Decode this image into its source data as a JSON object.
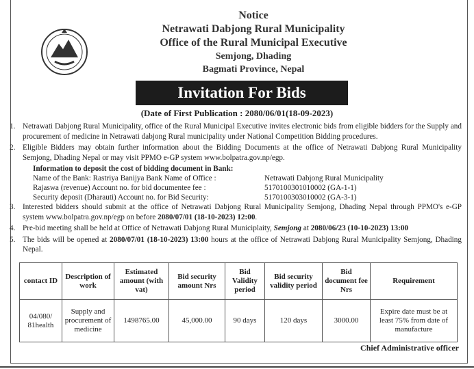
{
  "header": {
    "notice": "Notice",
    "municipality": "Netrawati Dabjong Rural Municipality",
    "office": "Office of the Rural Municipal Executive",
    "location": "Semjong, Dhading",
    "province": "Bagmati Province, Nepal"
  },
  "banner": "Invitation For Bids",
  "publication_date": "(Date of First Publication : 2080/06/01(18-09-2023)",
  "items": [
    {
      "n": "1.",
      "text": "Netrawati Dabjong Rural Municipality, office of the Rural Municipal Executive invites electronic bids from eligible bidders for the Supply and procurement of medicine in Netrawati dabjong Rural municipality under National Competition Bidding procedures."
    },
    {
      "n": "2.",
      "text": "Eligible Bidders may obtain further information about the Bidding Documents at the office of Netrawati Dabjong Rural Municipality Semjong, Dhading Nepal or may visit PPMO e-GP system ",
      "link": "www.bolpatra.gov.np/egp",
      "end": "."
    }
  ],
  "bank": {
    "heading": "Information to deposit the cost of bidding document in Bank:",
    "rows": [
      [
        "Name of the Bank: Rastriya  Banijya Bank   Name of Office :",
        "Netrawati Dabjong Rural Municipality"
      ],
      [
        "Rajaswa (revenue) Account no. for bid documentee fee :",
        "5170100301010002 (GA-1-1)"
      ],
      [
        "Security deposit (Dharauti) Account no. for Bid Security:",
        "5170100303010002 (GA-3-1)"
      ]
    ]
  },
  "items2": [
    {
      "n": "3.",
      "a": "Interested bidders should submit at the office of Netrawati Dabjong Rural Municipality Semjong, Dhading Nepal through PPMO's e-GP system www.bolpatra.gov.np/egp on  before ",
      "b": "2080/07/01 (18-10-2023) 12:00",
      "c": "."
    },
    {
      "n": "4.",
      "a": "Pre-bid meeting shall be held at Office of Netrawati Dabjong Rural Municiplaity, ",
      "i": "Semjong",
      "a2": " at ",
      "b": "2080/06/23 (10-10-2023) 13:00"
    },
    {
      "n": "5.",
      "a": "The bids will be opened at  ",
      "b": "2080/07/01 (18-10-2023) 13:00",
      "c": " hours at the office of Netrawati Dabjong Rural Municipality Semjong, Dhading Nepal."
    }
  ],
  "table": {
    "headers": [
      "contact ID",
      "Description of work",
      "Estimated amount (with vat)",
      "Bid security amount Nrs",
      "Bid Validity period",
      "Bid security validity period",
      "Bid document fee Nrs",
      "Requirement"
    ],
    "row": [
      "04/080/ 81health",
      "Supply and procurement of medicine",
      "1498765.00",
      "45,000.00",
      "90 days",
      "120 days",
      "3000.00",
      "Expire date must be at least 75% from date of manufacture"
    ]
  },
  "signature": "Chief Administrative officer"
}
